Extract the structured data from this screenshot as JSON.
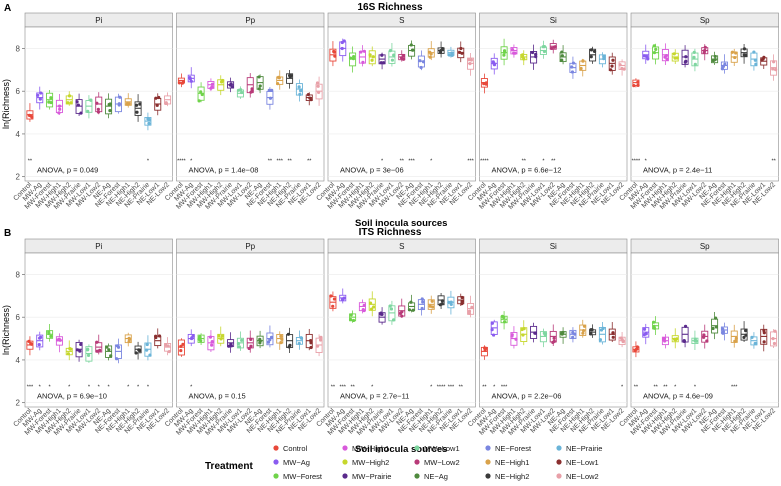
{
  "treatments": [
    "Control",
    "MW-Ag",
    "MW-Forest",
    "MW-High1",
    "MW-High2",
    "MW-Prairie",
    "MW-Low1",
    "MW-Low2",
    "NE-Ag",
    "NE-Forest",
    "NE-High1",
    "NE-High2",
    "NE-Prairie",
    "NE-Low1",
    "NE-Low2"
  ],
  "colors": {
    "Control": "#e8483a",
    "MW-Ag": "#8a5cf0",
    "MW-Forest": "#6fd34a",
    "MW-High1": "#d85adb",
    "MW-High2": "#c6d72c",
    "MW-Prairie": "#5a2a8c",
    "MW-Low1": "#7ed6a0",
    "MW-Low2": "#b83a78",
    "NE-Ag": "#4f8a3e",
    "NE-Forest": "#7a86e0",
    "NE-High1": "#d9a24a",
    "NE-High2": "#3a3a3a",
    "NE-Prairie": "#6ab4d8",
    "NE-Low1": "#8a2e2e",
    "NE-Low2": "#e8a0a8"
  },
  "legend": {
    "title": "Treatment",
    "items": [
      "Control",
      "MW−Ag",
      "MW−Forest",
      "MW−High1",
      "MW−High2",
      "MW−Prairie",
      "MW−Low1",
      "MW−Low2",
      "NE−Ag",
      "NE−Forest",
      "NE−High1",
      "NE−High2",
      "NE−Prairie",
      "NE−Low1",
      "NE−Low2"
    ]
  },
  "chart_data": [
    {
      "type": "box",
      "panel_letter": "A",
      "title": "16S Richness",
      "ylabel": "ln(Richness)",
      "xlabel": "Soil inocula sources",
      "ylim": [
        1.8,
        9.0
      ],
      "yticks": [
        2,
        4,
        6,
        8
      ],
      "facets": [
        {
          "name": "Pi",
          "anova": "ANOVA, p = 0.049",
          "medians": [
            4.9,
            5.7,
            5.6,
            5.3,
            5.6,
            5.3,
            5.3,
            5.4,
            5.3,
            5.4,
            5.5,
            5.2,
            4.6,
            5.4,
            5.6
          ],
          "sig": [
            "**",
            "",
            "",
            "",
            "",
            "",
            "",
            "",
            "",
            "",
            "",
            "",
            "*",
            "",
            ""
          ]
        },
        {
          "name": "Pp",
          "anova": "ANOVA, p = 1.4e−08",
          "medians": [
            6.5,
            6.6,
            5.9,
            6.3,
            6.3,
            6.3,
            5.9,
            6.3,
            6.4,
            5.7,
            6.5,
            6.6,
            6.1,
            5.7,
            6.0
          ],
          "sig": [
            "****",
            "*",
            "",
            "",
            "",
            "",
            "",
            "",
            "",
            "**",
            "***",
            "**",
            "",
            "**",
            ""
          ]
        },
        {
          "name": "S",
          "anova": "ANOVA, p = 3e−06",
          "medians": [
            7.7,
            8.0,
            7.5,
            7.6,
            7.6,
            7.5,
            7.6,
            7.6,
            7.9,
            7.4,
            7.8,
            7.9,
            7.8,
            7.8,
            7.3
          ],
          "sig": [
            "",
            "",
            "",
            "",
            "",
            "*",
            "",
            "**",
            "***",
            "",
            "*",
            "",
            "",
            "",
            "***"
          ]
        },
        {
          "name": "Si",
          "anova": "ANOVA, p = 6.6e−12",
          "medians": [
            6.4,
            7.3,
            7.8,
            7.9,
            7.6,
            7.6,
            7.9,
            8.1,
            7.6,
            7.1,
            7.2,
            7.7,
            7.5,
            7.3,
            7.2
          ],
          "sig": [
            "****",
            "",
            "",
            "",
            "**",
            "",
            "*",
            "**",
            "",
            "",
            "",
            "",
            "",
            "",
            ""
          ]
        },
        {
          "name": "Sp",
          "anova": "ANOVA, p = 2.4e−11",
          "medians": [
            6.4,
            7.7,
            7.8,
            7.7,
            7.6,
            7.6,
            7.5,
            7.9,
            7.5,
            7.2,
            7.6,
            7.8,
            7.5,
            7.4,
            7.1
          ],
          "sig": [
            "****",
            "*",
            "",
            "",
            "",
            "",
            "",
            "",
            "",
            "",
            "",
            "",
            "",
            "",
            "**"
          ]
        }
      ]
    },
    {
      "type": "box",
      "panel_letter": "B",
      "title": "ITS Richness",
      "ylabel": "ln(Richness)",
      "xlabel": "Soil inocula sources",
      "ylim": [
        1.8,
        9.0
      ],
      "yticks": [
        2,
        4,
        6,
        8
      ],
      "facets": [
        {
          "name": "Pi",
          "anova": "ANOVA, p = 6.9e−10",
          "medians": [
            4.7,
            4.9,
            5.2,
            4.9,
            4.4,
            4.5,
            4.3,
            4.6,
            4.4,
            4.4,
            5.0,
            4.5,
            4.5,
            4.9,
            4.6
          ],
          "sig": [
            "***",
            "*",
            "*",
            "",
            "*",
            "",
            "*",
            "*",
            "*",
            "",
            "*",
            "*",
            "*",
            "",
            ""
          ]
        },
        {
          "name": "Pp",
          "anova": "ANOVA, p = 0.15",
          "medians": [
            4.6,
            5.0,
            5.0,
            4.8,
            5.0,
            4.8,
            4.8,
            4.8,
            4.9,
            5.0,
            5.0,
            4.9,
            4.9,
            4.9,
            4.7
          ],
          "sig": [
            "",
            "*",
            "",
            "",
            "",
            "",
            "",
            "",
            "",
            "",
            "",
            "",
            "",
            "",
            ""
          ]
        },
        {
          "name": "S",
          "anova": "ANOVA, p = 2.7e−11",
          "medians": [
            6.7,
            6.9,
            6.0,
            6.5,
            6.6,
            6.0,
            6.2,
            6.3,
            6.5,
            6.6,
            6.6,
            6.8,
            6.7,
            6.8,
            6.4
          ],
          "sig": [
            "**",
            "***",
            "**",
            "",
            "*",
            "",
            "",
            "",
            "",
            "",
            "*",
            "****",
            "***",
            "**",
            ""
          ]
        },
        {
          "name": "Si",
          "anova": "ANOVA, p = 2.2e−06",
          "medians": [
            4.4,
            5.5,
            5.9,
            5.0,
            5.2,
            5.3,
            5.1,
            5.1,
            5.2,
            5.2,
            5.4,
            5.3,
            5.2,
            5.2,
            4.9
          ],
          "sig": [
            "**",
            "*",
            "***",
            "",
            "",
            "",
            "",
            "",
            "",
            "",
            "",
            "",
            "",
            "",
            "*"
          ]
        },
        {
          "name": "Sp",
          "anova": "ANOVA, p = 4.6e−09",
          "medians": [
            4.5,
            5.3,
            5.6,
            4.9,
            5.0,
            5.2,
            4.9,
            5.1,
            5.6,
            5.4,
            5.1,
            5.2,
            4.9,
            5.1,
            5.0
          ],
          "sig": [
            "**",
            "",
            "**",
            "**",
            "*",
            "",
            "*",
            "",
            "",
            "",
            "***",
            "",
            "",
            "",
            ""
          ]
        }
      ]
    }
  ]
}
